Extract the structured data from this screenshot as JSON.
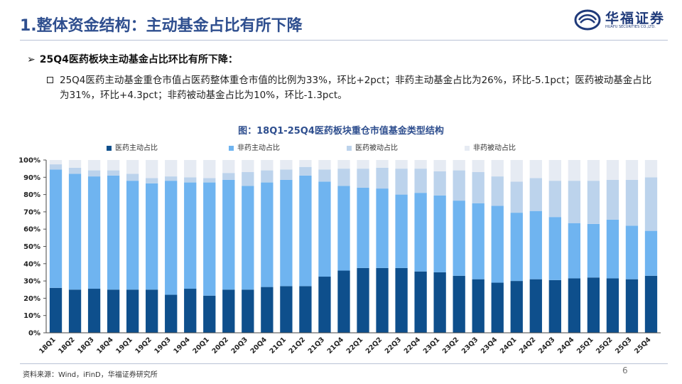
{
  "header": {
    "title": "1.整体资金结构：主动基金占比有所下降",
    "brand": "华福证券",
    "brand_sub": "HUAFU SECURITIES CO.,LTD."
  },
  "bullets": {
    "main": "25Q4医药板块主动基金占比环比有所下降：",
    "detail": "25Q4医药主动基金重仓市值占医药整体重仓市值的比例为33%，环比+2pct；非药主动基金占比为26%，环比-5.1pct；医药被动基金占比为31%，环比+4.3pct；非药被动基金占比为10%，环比-1.3pct。"
  },
  "chart_data": {
    "type": "bar",
    "stacked": true,
    "title": "图：18Q1-25Q4医药板块重仓市值基金类型结构",
    "categories": [
      "18Q1",
      "18Q2",
      "18Q3",
      "18Q4",
      "19Q1",
      "19Q2",
      "19Q3",
      "19Q4",
      "20Q1",
      "20Q2",
      "20Q3",
      "20Q4",
      "21Q1",
      "21Q2",
      "21Q3",
      "21Q4",
      "22Q1",
      "22Q2",
      "22Q3",
      "22Q4",
      "23Q1",
      "23Q2",
      "23Q3",
      "23Q4",
      "24Q1",
      "24Q2",
      "24Q3",
      "24Q4",
      "25Q1",
      "25Q2",
      "25Q3",
      "25Q4"
    ],
    "series": [
      {
        "name": "医药主动占比",
        "color": "#0e4f8c",
        "values": [
          26,
          25,
          25.5,
          25,
          25,
          25,
          22,
          25.5,
          21.5,
          25,
          25,
          26.5,
          27,
          27,
          32.5,
          36,
          37.5,
          37.5,
          37.5,
          35.5,
          35,
          33,
          31,
          29,
          30,
          31,
          30.5,
          31.5,
          32,
          31.5,
          31,
          33
        ]
      },
      {
        "name": "非药主动占比",
        "color": "#6fb4f0",
        "values": [
          68.5,
          67,
          65,
          66,
          63,
          61.5,
          66,
          61.5,
          65.5,
          63.5,
          60,
          60.5,
          61.5,
          64,
          55,
          49,
          46.5,
          46,
          42.5,
          45.5,
          44.5,
          43.5,
          44,
          44.5,
          39.5,
          39.5,
          36.5,
          32,
          31,
          34,
          31,
          26
        ]
      },
      {
        "name": "医药被动占比",
        "color": "#bcd3ec",
        "values": [
          3,
          3.5,
          3.5,
          3,
          4,
          3,
          2.5,
          3,
          2.5,
          4,
          8,
          7,
          6,
          5,
          7,
          10,
          11,
          12,
          15,
          14,
          14,
          17.5,
          18,
          17,
          18,
          19,
          21,
          24.5,
          25,
          23,
          26.5,
          31
        ]
      },
      {
        "name": "非药被动占比",
        "color": "#e6ebf3",
        "values": [
          2.5,
          4.5,
          6,
          6,
          8,
          10.5,
          9.5,
          10,
          10.5,
          7.5,
          7,
          6,
          5.5,
          4,
          5.5,
          5,
          5,
          4.5,
          5,
          5,
          6.5,
          6,
          7,
          9.5,
          12.5,
          10.5,
          12,
          12,
          12,
          11.5,
          11.5,
          10
        ]
      }
    ],
    "ylim": [
      0,
      100
    ],
    "yticks": [
      "0%",
      "10%",
      "20%",
      "30%",
      "40%",
      "50%",
      "60%",
      "70%",
      "80%",
      "90%",
      "100%"
    ],
    "xlabel": "",
    "ylabel": "",
    "legend": "top"
  },
  "footer": {
    "source": "资料来源：Wind，iFinD，华福证券研究所",
    "page": "6"
  }
}
